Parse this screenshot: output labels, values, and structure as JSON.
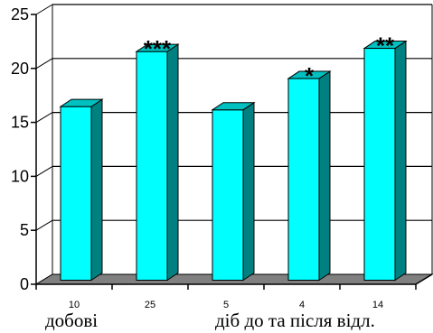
{
  "chart_data": {
    "type": "bar",
    "title": "",
    "xlabel": "",
    "ylabel": "",
    "categories": [
      "10",
      "25",
      "5",
      "4",
      "14"
    ],
    "values": [
      16,
      21.1,
      15.7,
      18.6,
      21.4
    ],
    "significance": [
      "",
      "***",
      "",
      "*",
      "**"
    ],
    "group_labels": [
      "добові",
      "діб до та після відл."
    ],
    "ylim": [
      0,
      25
    ],
    "yticks": [
      0,
      5,
      10,
      15,
      20,
      25
    ],
    "grid": true,
    "style": "3d",
    "colors": {
      "bar_front": "#00ffff",
      "bar_side": "#008080",
      "bar_top": "#00c0c0",
      "floor": "#808080",
      "outline": "#000000"
    }
  }
}
